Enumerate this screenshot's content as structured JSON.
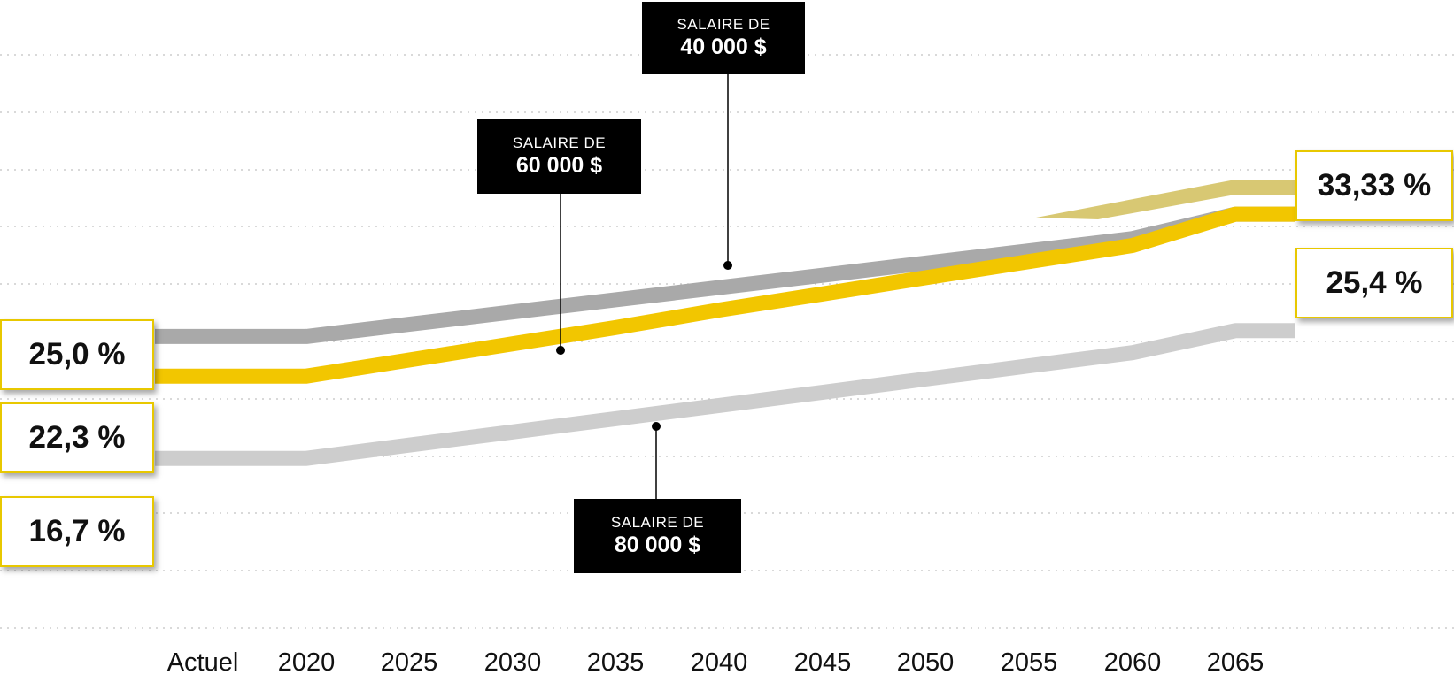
{
  "chart_data": {
    "type": "line",
    "categories": [
      "Actuel",
      "2020",
      "2025",
      "2030",
      "2035",
      "2040",
      "2045",
      "2050",
      "2055",
      "2060",
      "2065"
    ],
    "series": [
      {
        "name": "SALAIRE DE 40 000 $",
        "color": "#a9a9a9",
        "start_label": "25,0 %",
        "end_label": "33,33 %",
        "values": [
          25.0,
          25.0,
          25.83,
          26.67,
          27.5,
          28.33,
          29.17,
          30.0,
          30.83,
          31.67,
          33.33
        ]
      },
      {
        "name": "SALAIRE DE 60 000 $",
        "color": "#f2c600",
        "start_label": "22,3 %",
        "end_label": "33,33 %",
        "values": [
          22.3,
          22.3,
          23.4,
          24.5,
          25.6,
          26.8,
          27.9,
          29.0,
          30.1,
          31.2,
          33.33
        ]
      },
      {
        "name": "SALAIRE DE 80 000 $",
        "color": "#cdcdcd",
        "start_label": "16,7 %",
        "end_label": "25,4 %",
        "values": [
          16.7,
          16.7,
          17.6,
          18.5,
          19.4,
          20.3,
          21.2,
          22.1,
          23.0,
          23.9,
          25.4
        ]
      }
    ],
    "callouts": [
      {
        "line1": "SALAIRE DE",
        "line2": "40 000 $"
      },
      {
        "line1": "SALAIRE DE",
        "line2": "60 000 $"
      },
      {
        "line1": "SALAIRE DE",
        "line2": "80 000 $"
      }
    ],
    "grid": true,
    "legend": "none"
  }
}
